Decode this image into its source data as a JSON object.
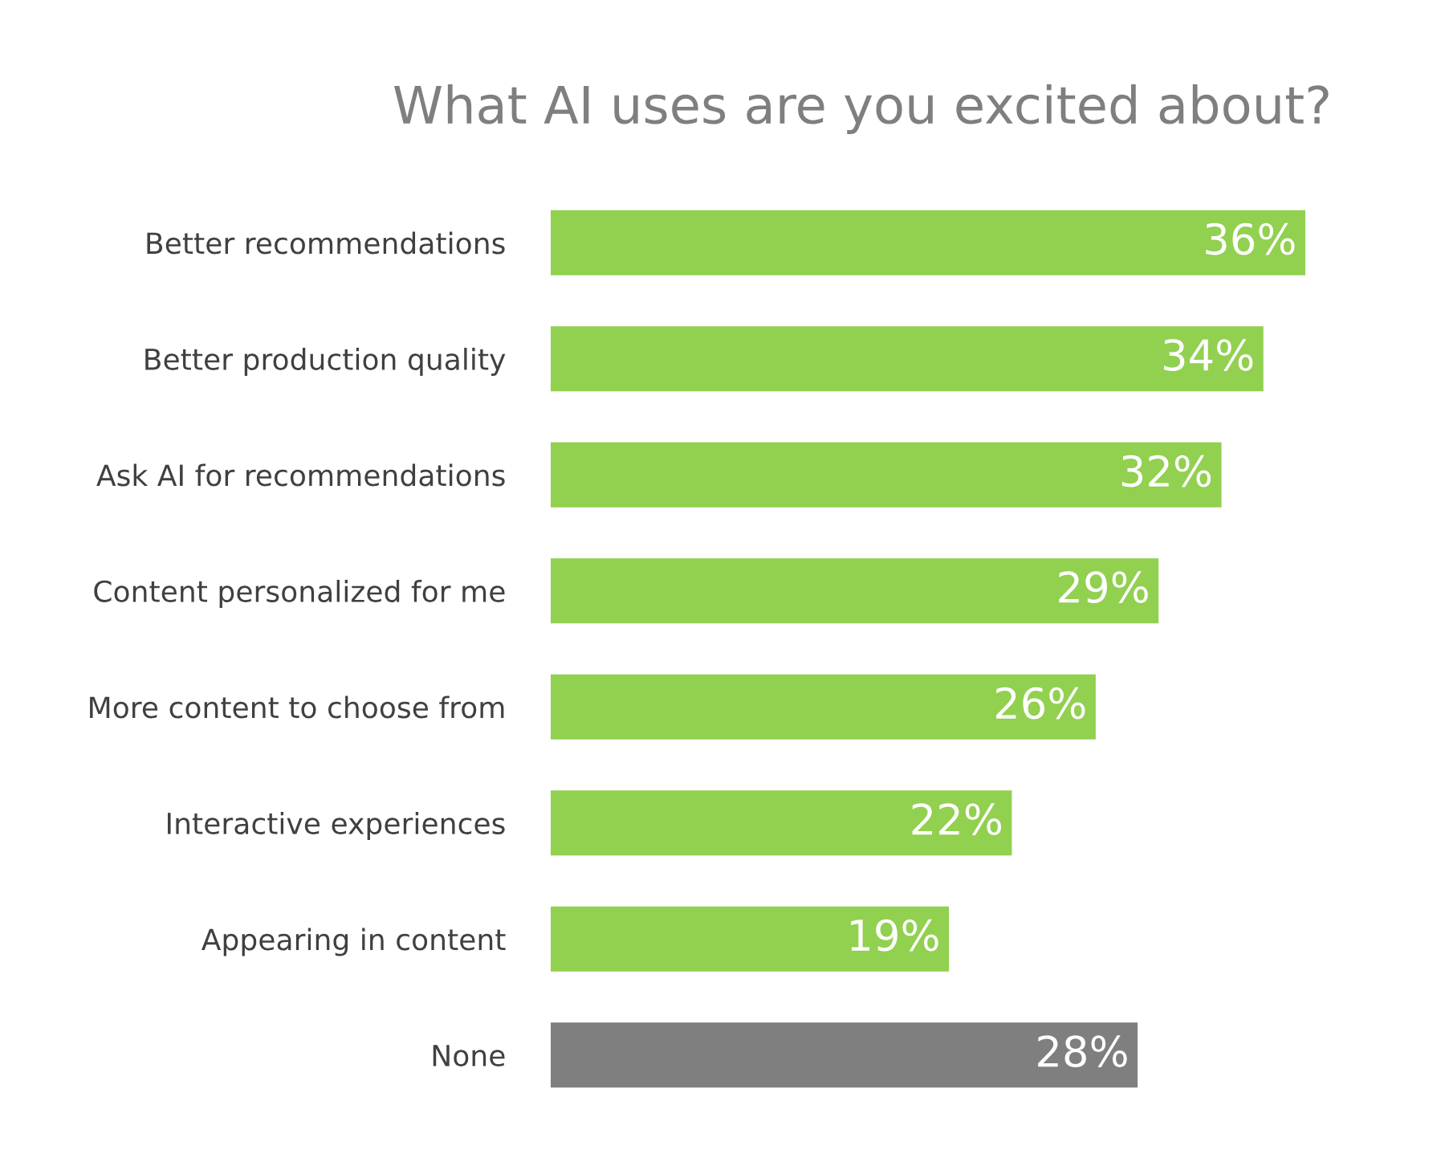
{
  "chart_data": {
    "type": "bar",
    "orientation": "horizontal",
    "title": "What AI uses are you excited about?",
    "categories": [
      "Better recommendations",
      "Better production quality",
      "Ask AI for recommendations",
      "Content personalized for me",
      "More content to choose from",
      "Interactive experiences",
      "Appearing in content",
      "None"
    ],
    "values": [
      36,
      34,
      32,
      29,
      26,
      22,
      19,
      28
    ],
    "value_labels": [
      "36%",
      "34%",
      "32%",
      "29%",
      "26%",
      "22%",
      "19%",
      "28%"
    ],
    "colors": [
      "#92d050",
      "#92d050",
      "#92d050",
      "#92d050",
      "#92d050",
      "#92d050",
      "#92d050",
      "#7f7f7f"
    ]
  }
}
